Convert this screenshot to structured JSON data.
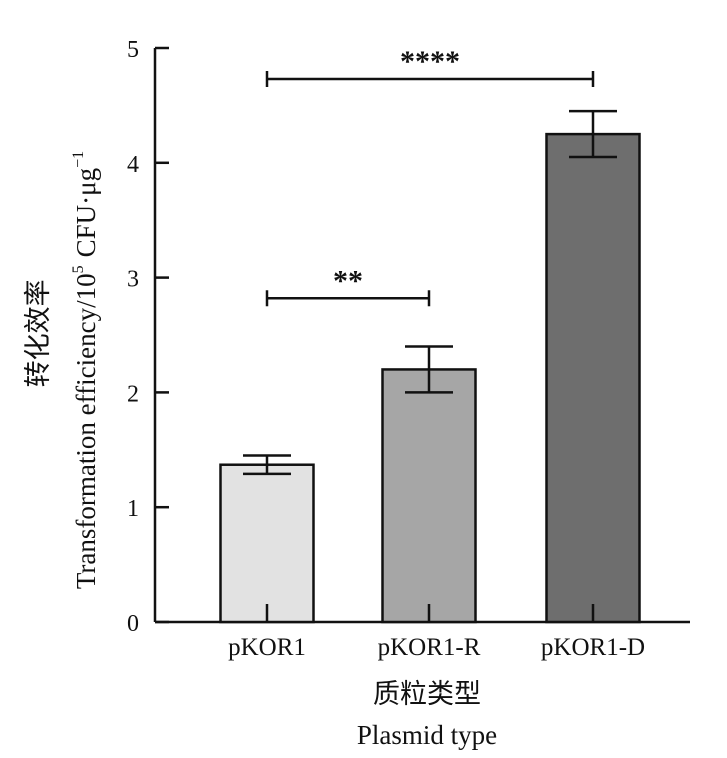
{
  "chart_data": {
    "type": "bar",
    "categories": [
      "pKOR1",
      "pKOR1-R",
      "pKOR1-D"
    ],
    "values": [
      1.37,
      2.2,
      4.25
    ],
    "errors": [
      0.08,
      0.2,
      0.2
    ],
    "colors": [
      "#e2e2e2",
      "#a6a6a6",
      "#6e6e6e"
    ],
    "ylim": [
      0,
      5
    ],
    "yticks": [
      "0",
      "1",
      "2",
      "3",
      "4",
      "5"
    ],
    "ylabel_cn": "转化效率",
    "ylabel_en": "Transformation efficiency/10",
    "ylabel_exp": "5",
    "ylabel_unit": "CFU·μg",
    "ylabel_unit_exp": "−1",
    "xlabel_cn": "质粒类型",
    "xlabel_en": "Plasmid type",
    "significance": [
      {
        "from": 0,
        "to": 1,
        "y": 2.82,
        "label": "**"
      },
      {
        "from": 0,
        "to": 2,
        "y": 4.73,
        "label": "****"
      }
    ]
  }
}
